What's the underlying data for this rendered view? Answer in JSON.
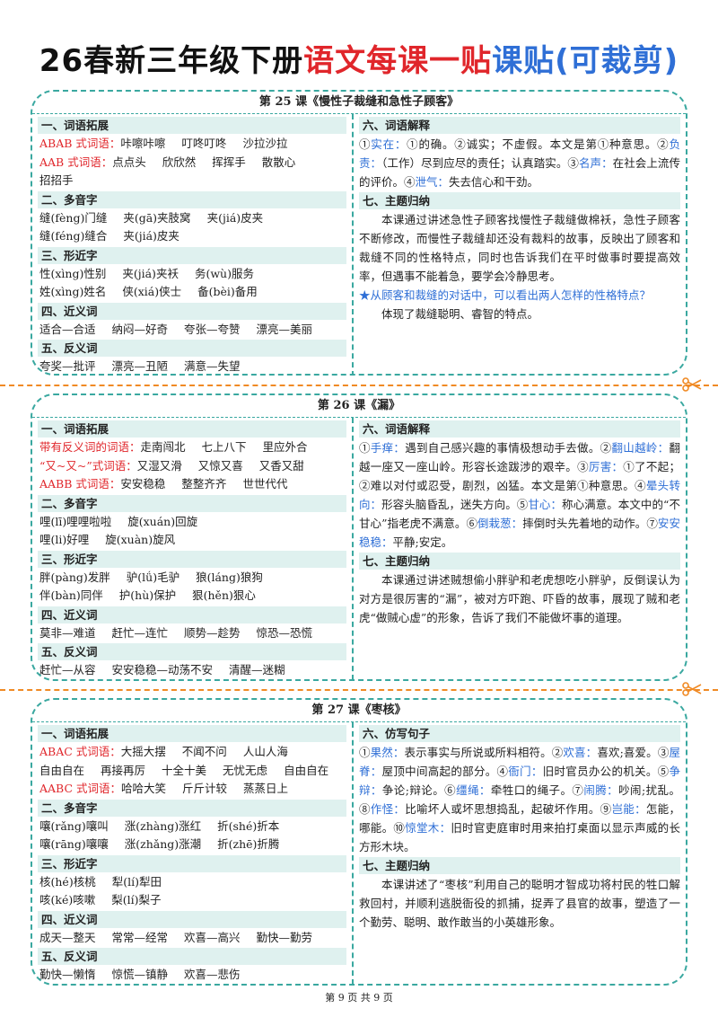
{
  "title": [
    {
      "text": "26春新三年级下册",
      "color": "#111111"
    },
    {
      "text": "语文每课一贴",
      "color": "#e0262b"
    },
    {
      "text": "课贴(可裁剪)",
      "color": "#2f6fd6"
    }
  ],
  "lessons": [
    {
      "title": "第 25 课《慢性子裁缝和急性子顾客》",
      "left": [
        {
          "heading": "一、词语拓展",
          "rows": [
            {
              "label": "ABAB 式词语：",
              "items": [
                "咔嚓咔嚓",
                "叮咚叮咚",
                "沙拉沙拉"
              ]
            },
            {
              "label": "AAB 式词语：",
              "items": [
                "点点头",
                "欣欣然",
                "挥挥手",
                "散散心"
              ]
            },
            {
              "items": [
                "招招手"
              ]
            }
          ]
        },
        {
          "heading": "二、多音字",
          "rows": [
            {
              "items": [
                "缝(fèng)门缝",
                "夹(gā)夹肢窝",
                "夹(jiá)皮夹"
              ]
            },
            {
              "items": [
                "缝(féng)缝合",
                "夹(jiá)皮夹"
              ]
            }
          ]
        },
        {
          "heading": "三、形近字",
          "rows": [
            {
              "items": [
                "性(xìng)性别",
                "夹(jiá)夹袄",
                "务(wù)服务"
              ]
            },
            {
              "items": [
                "姓(xìng)姓名",
                "侠(xiá)侠士",
                "备(bèi)备用"
              ]
            }
          ]
        },
        {
          "heading": "四、近义词",
          "rows": [
            {
              "items": [
                "适合—合适",
                "纳闷—好奇",
                "夸张—夸赞",
                "漂亮—美丽"
              ]
            }
          ]
        },
        {
          "heading": "五、反义词",
          "rows": [
            {
              "items": [
                "夸奖—批评",
                "漂亮—丑陋",
                "满意—失望"
              ]
            }
          ]
        }
      ],
      "right": [
        {
          "heading": "六、词语解释",
          "paras": [
            {
              "runs": [
                {
                  "text": "①"
                },
                {
                  "term": "实在："
                },
                {
                  "text": "①的确。②诚实；不虚假。本文是第①种意思。②"
                },
                {
                  "term": "负责："
                },
                {
                  "text": "（工作）尽到应尽的责任；认真踏实。③"
                },
                {
                  "term": "名声："
                },
                {
                  "text": "在社会上流传的评价。④"
                },
                {
                  "term": "泄气："
                },
                {
                  "text": "失去信心和干劲。"
                }
              ]
            }
          ]
        },
        {
          "heading": "七、主题归纳",
          "paras": [
            {
              "indent": "本课通过讲述急性子顾客找慢性子裁缝做棉袄，急性子顾客不断修改，而慢性子裁缝却还没有裁料的故事，反映出了顾客和裁缝不同的性格特点，同时也告诉我们在平时做事时要提高效率，但遇事不能着急，要学会冷静思考。"
            },
            {
              "star": "★从顾客和裁缝的对话中，可以看出两人怎样的性格特点？"
            },
            {
              "indent": "体现了裁缝聪明、睿智的特点。"
            }
          ]
        }
      ]
    },
    {
      "title": "第 26 课《漏》",
      "left": [
        {
          "heading": "一、词语拓展",
          "rows": [
            {
              "label": "带有反义词的词语：",
              "items": [
                "走南闯北",
                "七上八下",
                "里应外合"
              ]
            },
            {
              "label": "“又~又~”式词语：",
              "items": [
                "又湿又滑",
                "又惊又喜",
                "又香又甜"
              ]
            },
            {
              "label": "AABB 式词语：",
              "items": [
                "安安稳稳",
                "整整齐齐",
                "世世代代"
              ]
            }
          ]
        },
        {
          "heading": "二、多音字",
          "rows": [
            {
              "items": [
                "哩(lī)哩哩啦啦",
                "旋(xuán)回旋"
              ]
            },
            {
              "items": [
                "哩(li)好哩",
                "旋(xuàn)旋风"
              ]
            }
          ]
        },
        {
          "heading": "三、形近字",
          "rows": [
            {
              "items": [
                "胖(pàng)发胖",
                "驴(lǘ)毛驴",
                "狼(láng)狼狗"
              ]
            },
            {
              "items": [
                "伴(bàn)同伴",
                "护(hù)保护",
                "狠(hěn)狠心"
              ]
            }
          ]
        },
        {
          "heading": "四、近义词",
          "rows": [
            {
              "items": [
                "莫非—难道",
                "赶忙—连忙",
                "顺势—趁势",
                "惊恐—恐慌"
              ]
            }
          ]
        },
        {
          "heading": "五、反义词",
          "rows": [
            {
              "items": [
                "赶忙—从容",
                "安安稳稳—动荡不安",
                "清醒—迷糊"
              ]
            }
          ]
        }
      ],
      "right": [
        {
          "heading": "六、词语解释",
          "paras": [
            {
              "runs": [
                {
                  "text": "①"
                },
                {
                  "term": "手痒："
                },
                {
                  "text": "遇到自己感兴趣的事情极想动手去做。②"
                },
                {
                  "term": "翻山越岭："
                },
                {
                  "text": "翻越一座又一座山岭。形容长途跋涉的艰辛。③"
                },
                {
                  "term": "厉害："
                },
                {
                  "text": "①了不起；②难以对付或忍受，剧烈，凶猛。本文是第①种意思。④"
                },
                {
                  "term": "晕头转向："
                },
                {
                  "text": "形容头脑昏乱，迷失方向。⑤"
                },
                {
                  "term": "甘心："
                },
                {
                  "text": "称心满意。本文中的“不甘心”指老虎不满意。⑥"
                },
                {
                  "term": "倒栽葱："
                },
                {
                  "text": "摔倒时头先着地的动作。⑦"
                },
                {
                  "term": "安安稳稳："
                },
                {
                  "text": "平静;安定。"
                }
              ]
            }
          ]
        },
        {
          "heading": "七、主题归纳",
          "paras": [
            {
              "indent": "本课通过讲述贼想偷小胖驴和老虎想吃小胖驴，反倒误认为对方是很厉害的“漏”，被对方吓跑、吓昏的故事，展现了贼和老虎“做贼心虚”的形象，告诉了我们不能做坏事的道理。"
            }
          ]
        }
      ]
    },
    {
      "title": "第 27 课《枣核》",
      "left": [
        {
          "heading": "一、词语拓展",
          "rows": [
            {
              "label": "ABAC 式词语：",
              "items": [
                "大摇大摆",
                "不闻不问",
                "人山人海"
              ]
            },
            {
              "items": [
                "自由自在",
                "再接再厉",
                "十全十美",
                "无忧无虑",
                "自由自在"
              ]
            },
            {
              "label": "AABC 式词语：",
              "items": [
                "哈哈大笑",
                "斤斤计较",
                "蒸蒸日上"
              ]
            }
          ]
        },
        {
          "heading": "二、多音字",
          "rows": [
            {
              "items": [
                "嚷(rǎng)嚷叫",
                "涨(zhàng)涨红",
                "折(shé)折本"
              ]
            },
            {
              "items": [
                "嚷(rāng)嚷嚷",
                "涨(zhǎng)涨潮",
                "折(zhē)折腾"
              ]
            }
          ]
        },
        {
          "heading": "三、形近字",
          "rows": [
            {
              "items": [
                "核(hé)核桃",
                "犁(lí)犁田"
              ]
            },
            {
              "items": [
                "咳(ké)咳嗽",
                "梨(lí)梨子"
              ]
            }
          ]
        },
        {
          "heading": "四、近义词",
          "rows": [
            {
              "items": [
                "成天—整天",
                "常常—经常",
                "欢喜—高兴",
                "勤快—勤劳"
              ]
            }
          ]
        },
        {
          "heading": "五、反义词",
          "rows": [
            {
              "items": [
                "勤快—懒惰",
                "惊慌—镇静",
                "欢喜—悲伤"
              ]
            }
          ]
        }
      ],
      "right": [
        {
          "heading": "六、仿写句子",
          "paras": [
            {
              "runs": [
                {
                  "text": "①"
                },
                {
                  "term": "果然："
                },
                {
                  "text": "表示事实与所说或所料相符。②"
                },
                {
                  "term": "欢喜："
                },
                {
                  "text": "喜欢;喜爱。③"
                },
                {
                  "term": "屋脊："
                },
                {
                  "text": "屋顶中间高起的部分。④"
                },
                {
                  "term": "衙门："
                },
                {
                  "text": "旧时官员办公的机关。⑤"
                },
                {
                  "term": "争辩："
                },
                {
                  "text": "争论;辩论。⑥"
                },
                {
                  "term": "缰绳："
                },
                {
                  "text": "牵牲口的绳子。⑦"
                },
                {
                  "term": "闹腾："
                },
                {
                  "text": "吵闹;扰乱。⑧"
                },
                {
                  "term": "作怪："
                },
                {
                  "text": "比喻坏人或坏思想捣乱，起破坏作用。⑨"
                },
                {
                  "term": "岂能："
                },
                {
                  "text": "怎能，哪能。⑩"
                },
                {
                  "term": "惊堂木："
                },
                {
                  "text": "旧时官吏庭审时用来拍打桌面以显示声威的长方形木块。"
                }
              ]
            }
          ]
        },
        {
          "heading": "七、主题归纳",
          "paras": [
            {
              "indent": "本课讲述了“枣核”利用自己的聪明才智成功将村民的牲口解救回村，并顺利逃脱衙役的抓捕，捉弄了县官的故事，塑造了一个勤劳、聪明、敢作敢当的小英雄形象。"
            }
          ]
        }
      ]
    }
  ],
  "footer": "第 9 页 共 9 页"
}
